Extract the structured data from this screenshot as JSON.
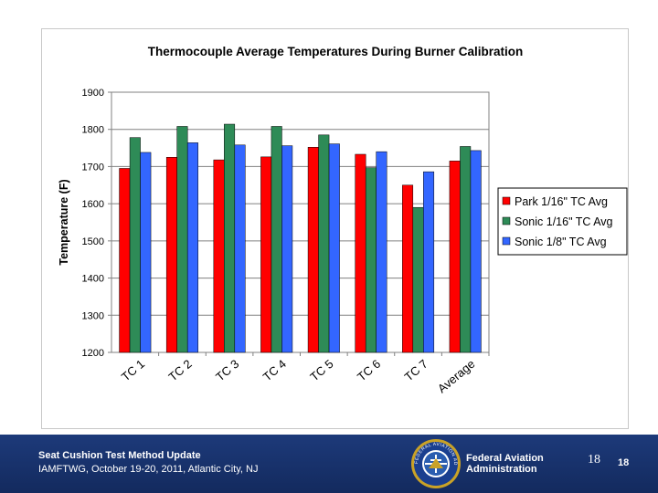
{
  "chart_data": {
    "type": "bar",
    "title": "Thermocouple Average Temperatures During Burner Calibration",
    "xlabel": "",
    "ylabel": "Temperature (F)",
    "ylim": [
      1200,
      1900
    ],
    "yticks": [
      1200,
      1300,
      1400,
      1500,
      1600,
      1700,
      1800,
      1900
    ],
    "grid": true,
    "legend_position": "right",
    "categories": [
      "TC 1",
      "TC 2",
      "TC 3",
      "TC 4",
      "TC 5",
      "TC 6",
      "TC 7",
      "Average"
    ],
    "series": [
      {
        "name": "Park 1/16\" TC Avg",
        "color": "#ff0000",
        "values": [
          1695,
          1725,
          1718,
          1726,
          1752,
          1733,
          1650,
          1715
        ]
      },
      {
        "name": "Sonic 1/16\" TC Avg",
        "color": "#2e8b57",
        "values": [
          1778,
          1808,
          1814,
          1808,
          1785,
          1697,
          1590,
          1754
        ]
      },
      {
        "name": "Sonic 1/8\" TC Avg",
        "color": "#3366ff",
        "values": [
          1738,
          1764,
          1758,
          1756,
          1761,
          1740,
          1686,
          1743
        ]
      }
    ]
  },
  "footer": {
    "title": "Seat Cushion Test Method Update",
    "subtitle": "IAMFTWG, October 19-20, 2011, Atlantic City, NJ",
    "agency_line1": "Federal Aviation",
    "agency_line2": "Administration",
    "page_number": "18",
    "page_number_bold": "18",
    "seal_text": "FEDERAL AVIATION ADMINISTRATION"
  }
}
